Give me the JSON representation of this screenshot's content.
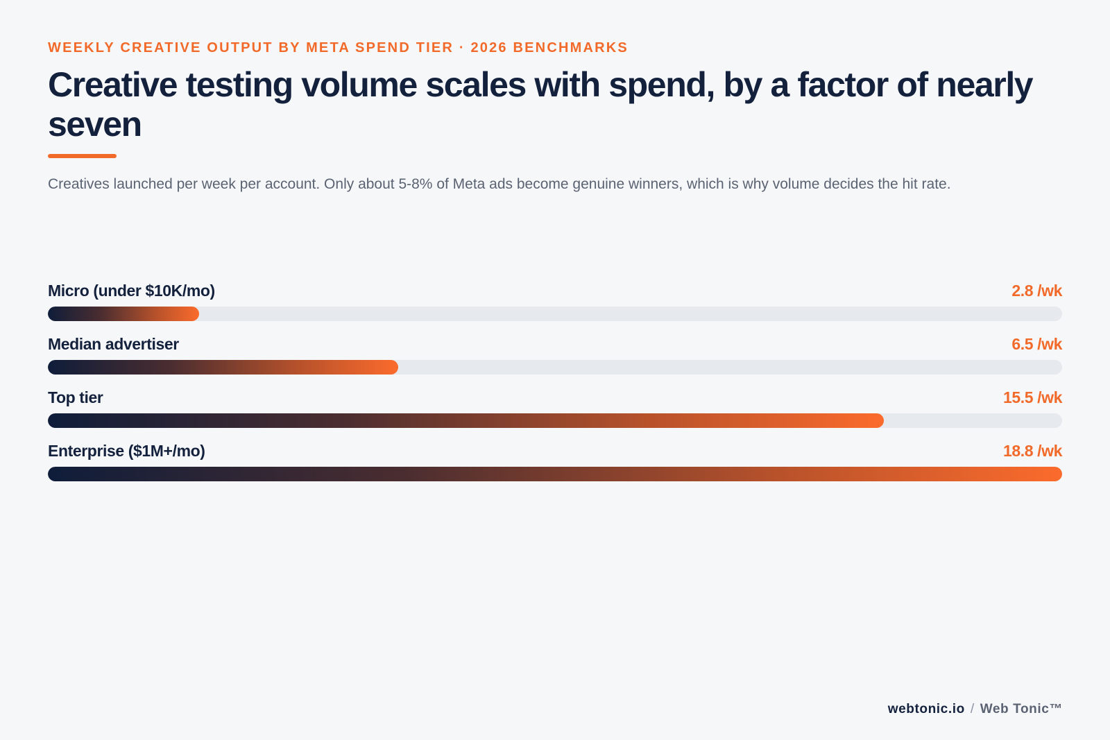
{
  "eyebrow": "WEEKLY CREATIVE OUTPUT BY META SPEND TIER · 2026 BENCHMARKS",
  "title": "Creative testing volume scales with spend, by a factor of nearly seven",
  "subtitle": "Creatives launched per week per account. Only about 5-8% of Meta ads become genuine winners, which is why volume decides the hit rate.",
  "colors": {
    "accent": "#f26a2a",
    "navy": "#14213d",
    "track": "#e6e9ee",
    "background": "#f6f7f9"
  },
  "chart_data": {
    "type": "bar",
    "orientation": "horizontal",
    "unit_suffix": " /wk",
    "xlim": [
      0,
      18.8
    ],
    "grid": false,
    "categories": [
      "Micro (under $10K/mo)",
      "Median advertiser",
      "Top tier",
      "Enterprise ($1M+/mo)"
    ],
    "values": [
      2.8,
      6.5,
      15.5,
      18.8
    ],
    "value_labels": [
      "2.8 /wk",
      "6.5 /wk",
      "15.5 /wk",
      "18.8 /wk"
    ]
  },
  "footer": {
    "domain": "webtonic.io",
    "separator": "/",
    "brand": "Web Tonic™"
  }
}
